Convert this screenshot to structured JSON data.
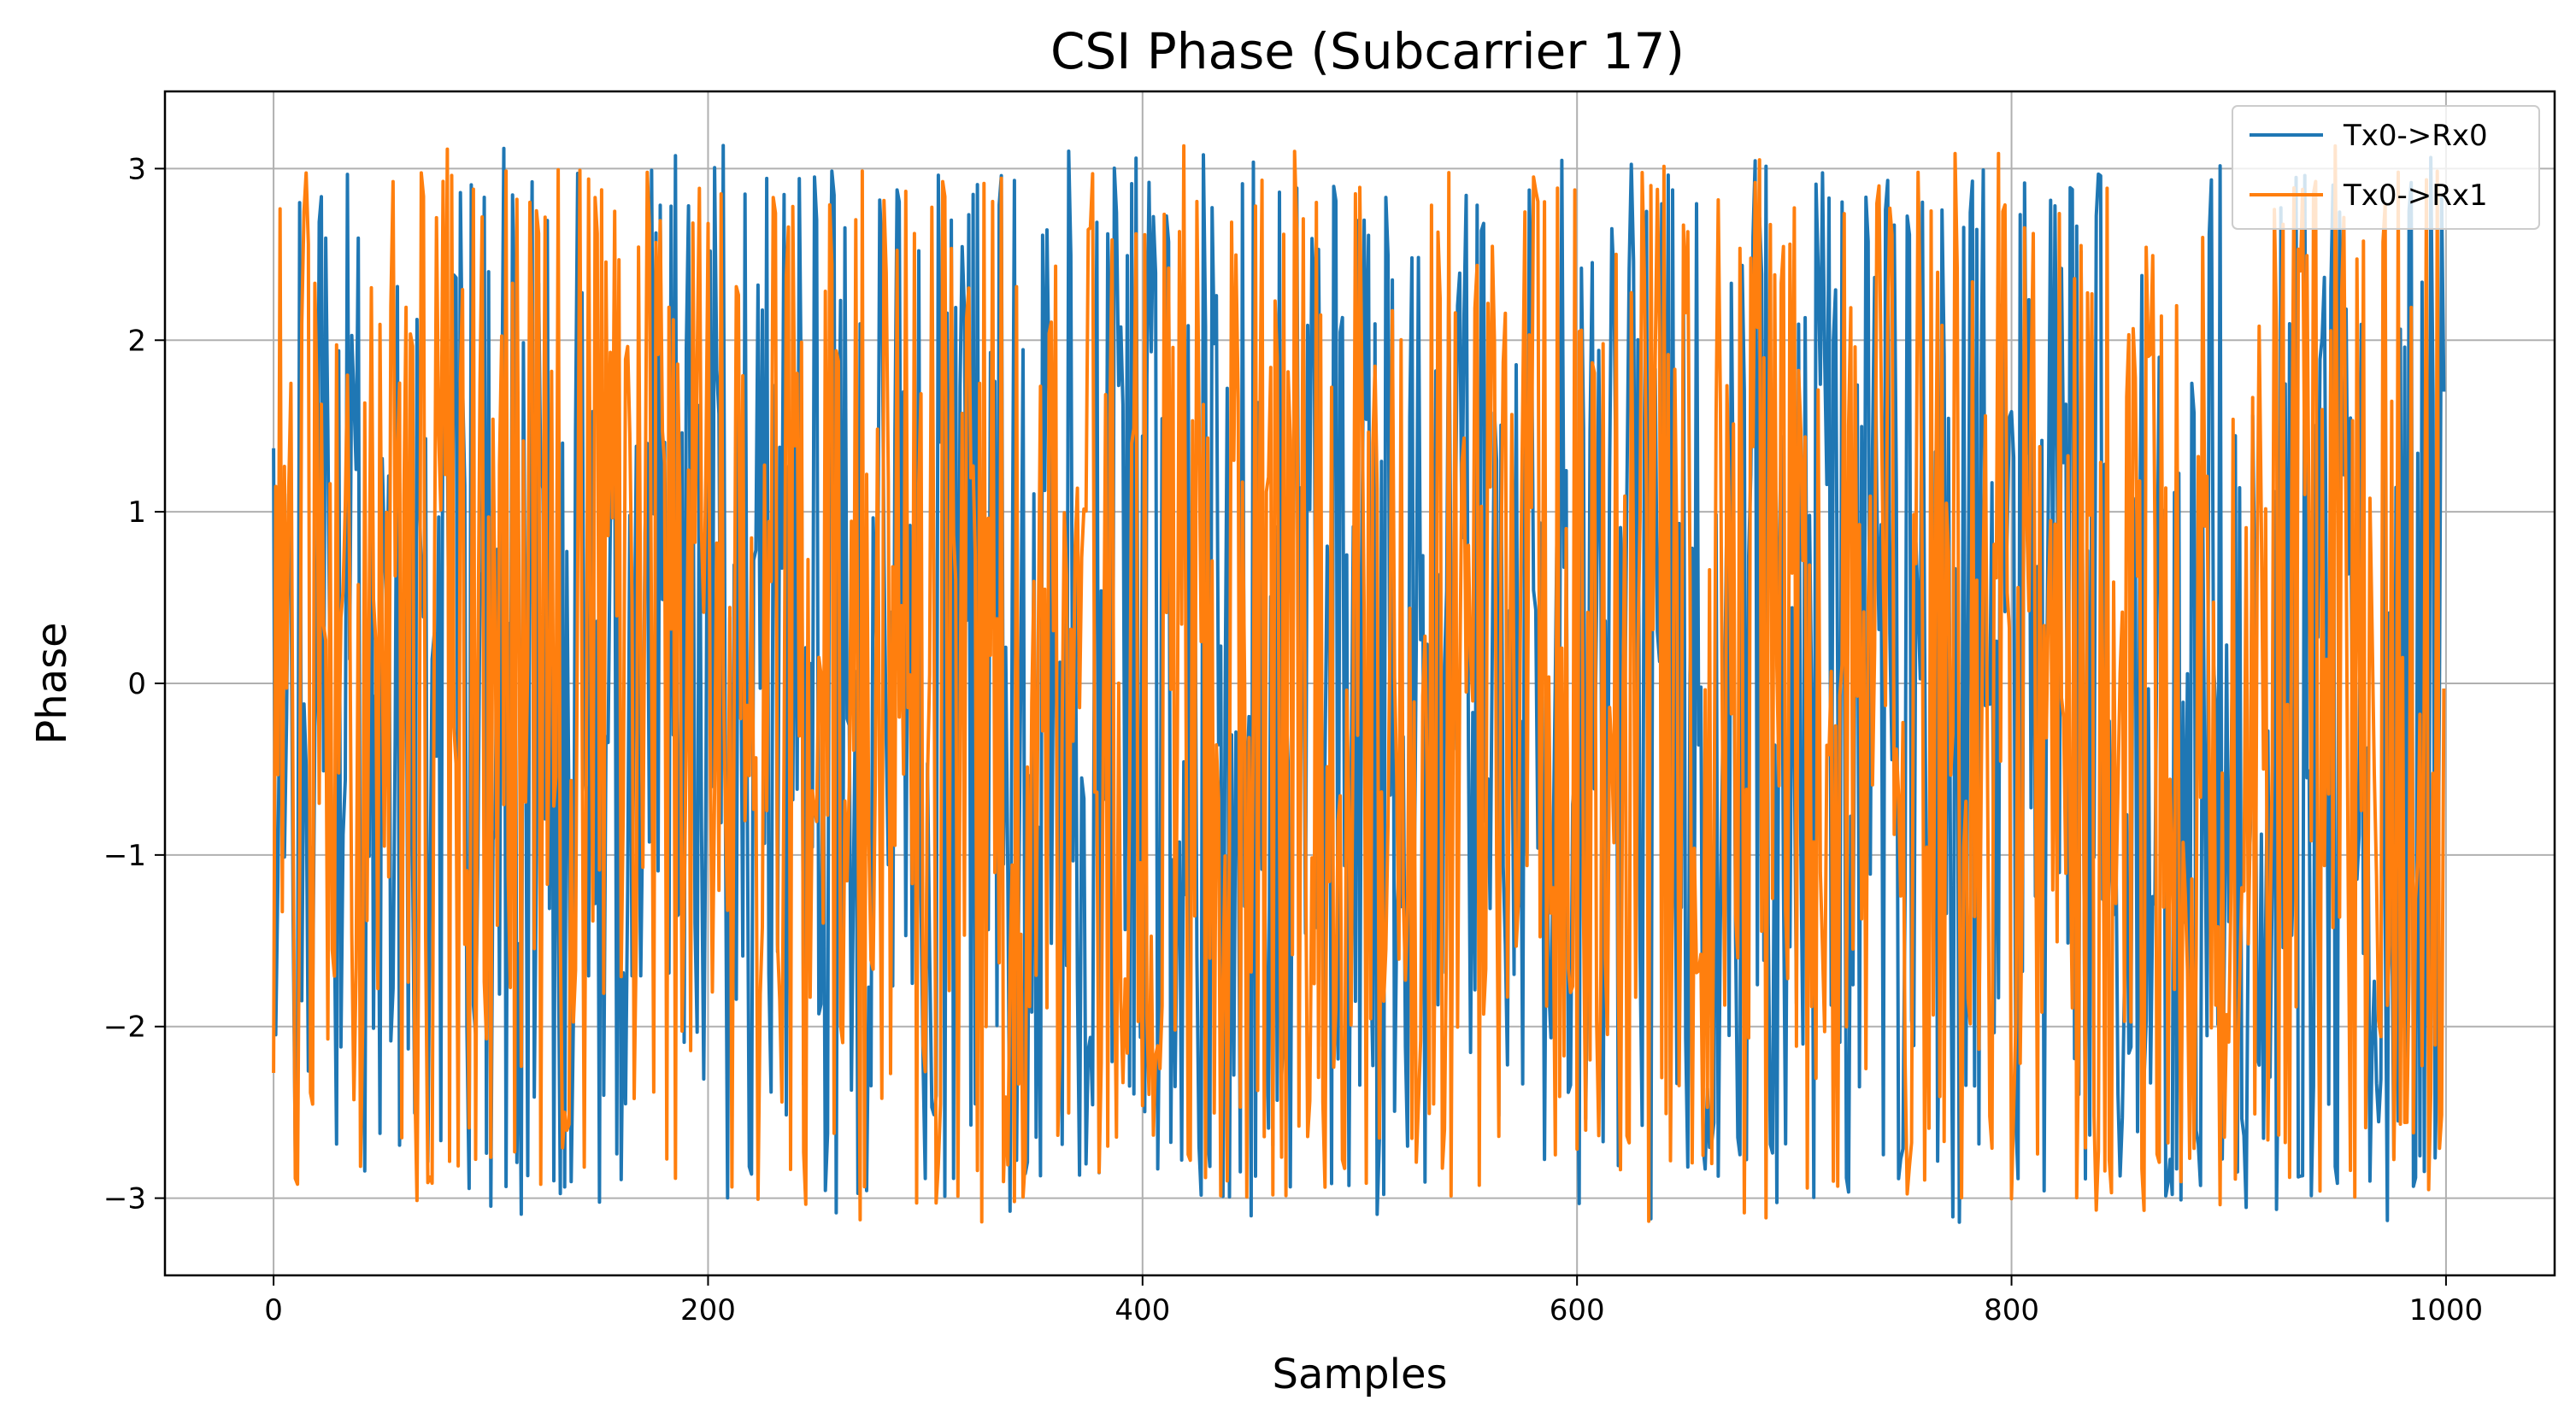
{
  "chart_data": {
    "type": "line",
    "title": "CSI Phase (Subcarrier 17)",
    "xlabel": "Samples",
    "ylabel": "Phase",
    "xlim": [
      -50,
      1050
    ],
    "ylim": [
      -3.45,
      3.45
    ],
    "xticks": [
      0,
      200,
      400,
      600,
      800,
      1000
    ],
    "yticks": [
      -3,
      -2,
      -1,
      0,
      1,
      2,
      3
    ],
    "ytick_labels": [
      "−3",
      "−2",
      "−1",
      "0",
      "1",
      "2",
      "3"
    ],
    "grid": true,
    "legend_position": "top-right",
    "n_points": 1000,
    "series": [
      {
        "name": "Tx0->Rx0",
        "color": "#1f77b4",
        "first_value": 1.37,
        "last_value": 1.7,
        "min": -3.14,
        "max": 3.14,
        "values_note_samples": [
          1.37,
          2.85,
          -2.98,
          -1.15,
          3.05,
          -2.2,
          0.5,
          1.8,
          -2.7,
          0.9
        ]
      },
      {
        "name": "Tx0->Rx1",
        "color": "#ff7f0e",
        "first_value": -2.27,
        "last_value": -0.03,
        "min": -3.14,
        "max": 3.1,
        "values_note_samples": [
          -2.27,
          2.98,
          0.1,
          1.7,
          -2.1,
          3.08,
          -1.2,
          2.4,
          -0.5,
          1.0
        ]
      }
    ]
  }
}
